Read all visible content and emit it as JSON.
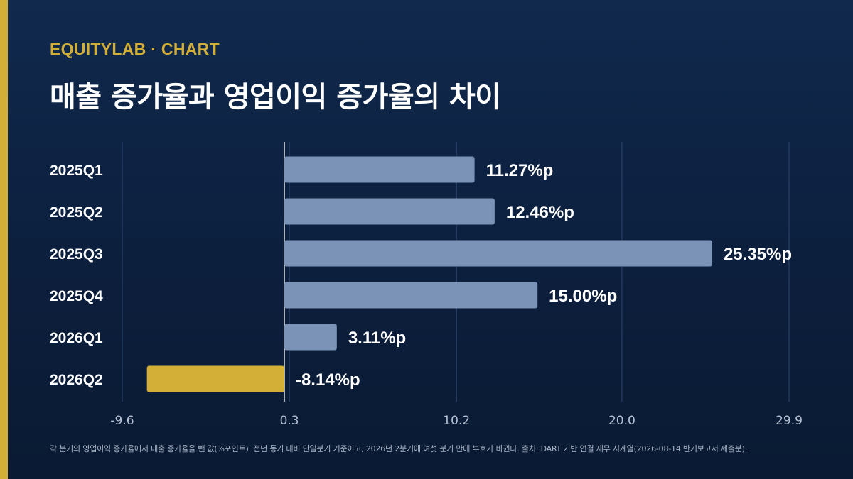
{
  "header": {
    "brand": "EQUITYLAB · CHART",
    "title": "매출 증가율과 영업이익 증가율의 차이"
  },
  "footnote": "각 분기의 영업이익 증가율에서 매출 증가율을 뺀 값(%포인트). 전년 동기 대비 단일분기 기준이고, 2026년 2분기에 여섯 분기 만에 부호가 바뀐다. 출처: DART 기반 연결 재무 시계열(2026-08-14 반기보고서 제출분).",
  "colors": {
    "background": "#0f2648",
    "accent": "#d4af37",
    "bar_positive": "#7b93b6",
    "bar_highlight": "#d4af37",
    "text": "#ffffff",
    "tick_text": "#b6c1d3",
    "grid": "#2e4670",
    "zero_line": "#e6ebf2"
  },
  "chart_data": {
    "type": "bar",
    "orientation": "horizontal",
    "categories": [
      "2025Q1",
      "2025Q2",
      "2025Q3",
      "2025Q4",
      "2026Q1",
      "2026Q2"
    ],
    "values": [
      11.27,
      12.46,
      25.35,
      15.0,
      3.11,
      -8.14
    ],
    "value_labels": [
      "11.27%p",
      "12.46%p",
      "25.35%p",
      "15.00%p",
      "3.11%p",
      "-8.14%p"
    ],
    "highlight_index": 5,
    "x_ticks": [
      "-9.6",
      "0.3",
      "10.2",
      "20.0",
      "29.9"
    ],
    "x_tick_values": [
      -9.6,
      0.3,
      10.2,
      20.0,
      29.9
    ],
    "xlim": [
      -9.6,
      29.9
    ],
    "grid": true
  }
}
